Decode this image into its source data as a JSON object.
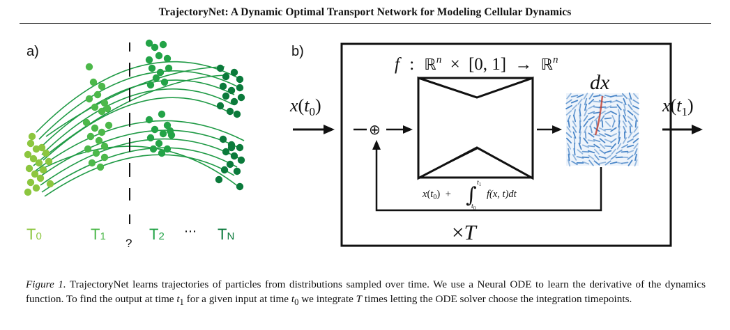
{
  "header": {
    "title": "TrajectoryNet: A Dynamic Optimal Transport Network for Modeling Cellular Dynamics"
  },
  "figure": {
    "panel_a": {
      "label": "a)",
      "question_mark": "?",
      "time_labels": [
        {
          "base": "T",
          "sub": "0"
        },
        {
          "base": "T",
          "sub": "1"
        },
        {
          "base": "T",
          "sub": "2"
        },
        {
          "base": "",
          "sub": "⋯"
        },
        {
          "base": "T",
          "sub": "N"
        }
      ],
      "colors": {
        "t0": "#8cc63f",
        "t1": "#4cb84a",
        "t2": "#23a347",
        "tn": "#0b7a3b",
        "trajectory": "#1f9a45"
      }
    },
    "panel_b": {
      "label": "b)",
      "function_signature": {
        "f": "f",
        "colon": ":",
        "R": "ℝ",
        "n": "n",
        "times": "×",
        "interval": "[0, 1]",
        "arrow": "→"
      },
      "input_label": {
        "x": "x",
        "t": "t",
        "sub": "0"
      },
      "output_label": {
        "x": "x",
        "t": "t",
        "sub": "1"
      },
      "derivative_label": "dx",
      "sum_symbol": "⊕",
      "integral_expr": {
        "x": "x",
        "t": "t",
        "sub0": "0",
        "plus": "+",
        "upper": "t",
        "upper_sub": "1",
        "lower": "t",
        "lower_sub": "0",
        "integrand": "f(x, t)dt"
      },
      "repeat_label": {
        "times": "×",
        "T": "T"
      },
      "field_color": "#4a86c8",
      "accent_color": "#c0392b"
    }
  },
  "caption": {
    "lead": "Figure 1.",
    "part1": " TrajectoryNet learns trajectories of particles from distributions sampled over time. We use a Neural ODE to learn the derivative of the dynamics function. To find the output at time ",
    "t1_var": "t",
    "t1_sub": "1",
    "part2": " for a given input at time ",
    "t0_var": "t",
    "t0_sub": "0",
    "part3": " we integrate ",
    "T_var": "T",
    "part4": " times letting the ODE solver choose the integration timepoints."
  }
}
